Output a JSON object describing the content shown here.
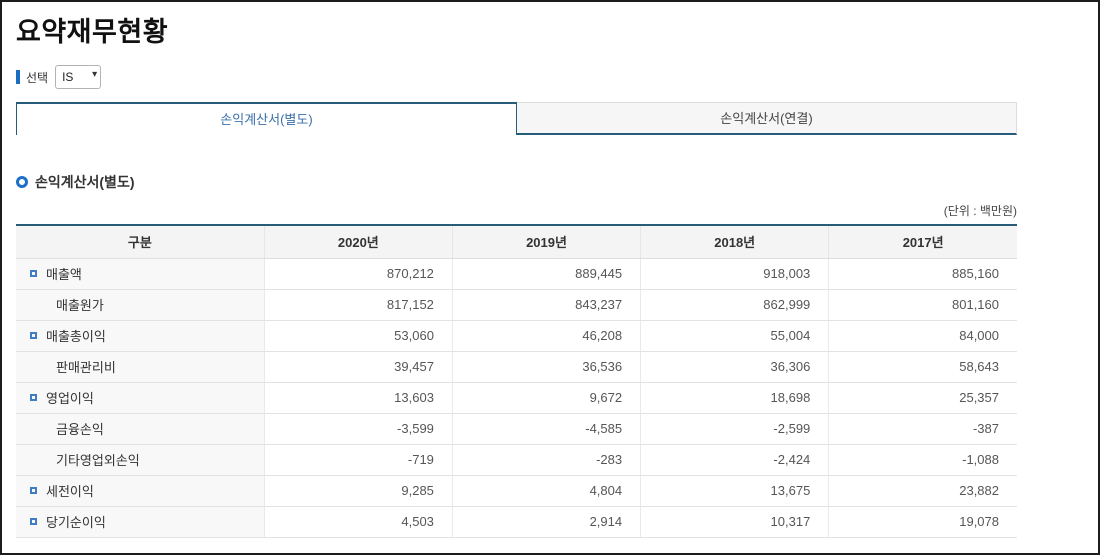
{
  "page": {
    "title": "요약재무현황",
    "select_label": "선택",
    "select_value": "IS",
    "tabs": [
      {
        "label": "손익계산서(별도)",
        "active": true
      },
      {
        "label": "손익계산서(연결)",
        "active": false
      }
    ],
    "section_title": "손익계산서(별도)",
    "unit_label": "(단위 : 백만원)"
  },
  "colors": {
    "accent_blue": "#1a6dc0",
    "tab_border_navy": "#275c7a",
    "tab_active_text": "#3a6fa8",
    "table_top_border": "#2a5c78",
    "bullet_blue": "#3f7cc4"
  },
  "icons": {
    "select_chevron": "▾",
    "section_marker": "ring-circle",
    "row_marker": "square-outline"
  },
  "table": {
    "columns": [
      "구분",
      "2020년",
      "2019년",
      "2018년",
      "2017년"
    ],
    "rows": [
      {
        "label": "매출액",
        "bullet": true,
        "values": [
          "870,212",
          "889,445",
          "918,003",
          "885,160"
        ]
      },
      {
        "label": "매출원가",
        "bullet": false,
        "values": [
          "817,152",
          "843,237",
          "862,999",
          "801,160"
        ]
      },
      {
        "label": "매출총이익",
        "bullet": true,
        "values": [
          "53,060",
          "46,208",
          "55,004",
          "84,000"
        ]
      },
      {
        "label": "판매관리비",
        "bullet": false,
        "values": [
          "39,457",
          "36,536",
          "36,306",
          "58,643"
        ]
      },
      {
        "label": "영업이익",
        "bullet": true,
        "values": [
          "13,603",
          "9,672",
          "18,698",
          "25,357"
        ]
      },
      {
        "label": "금융손익",
        "bullet": false,
        "values": [
          "-3,599",
          "-4,585",
          "-2,599",
          "-387"
        ]
      },
      {
        "label": "기타영업외손익",
        "bullet": false,
        "values": [
          "-719",
          "-283",
          "-2,424",
          "-1,088"
        ]
      },
      {
        "label": "세전이익",
        "bullet": true,
        "values": [
          "9,285",
          "4,804",
          "13,675",
          "23,882"
        ]
      },
      {
        "label": "당기순이익",
        "bullet": true,
        "values": [
          "4,503",
          "2,914",
          "10,317",
          "19,078"
        ]
      }
    ]
  }
}
